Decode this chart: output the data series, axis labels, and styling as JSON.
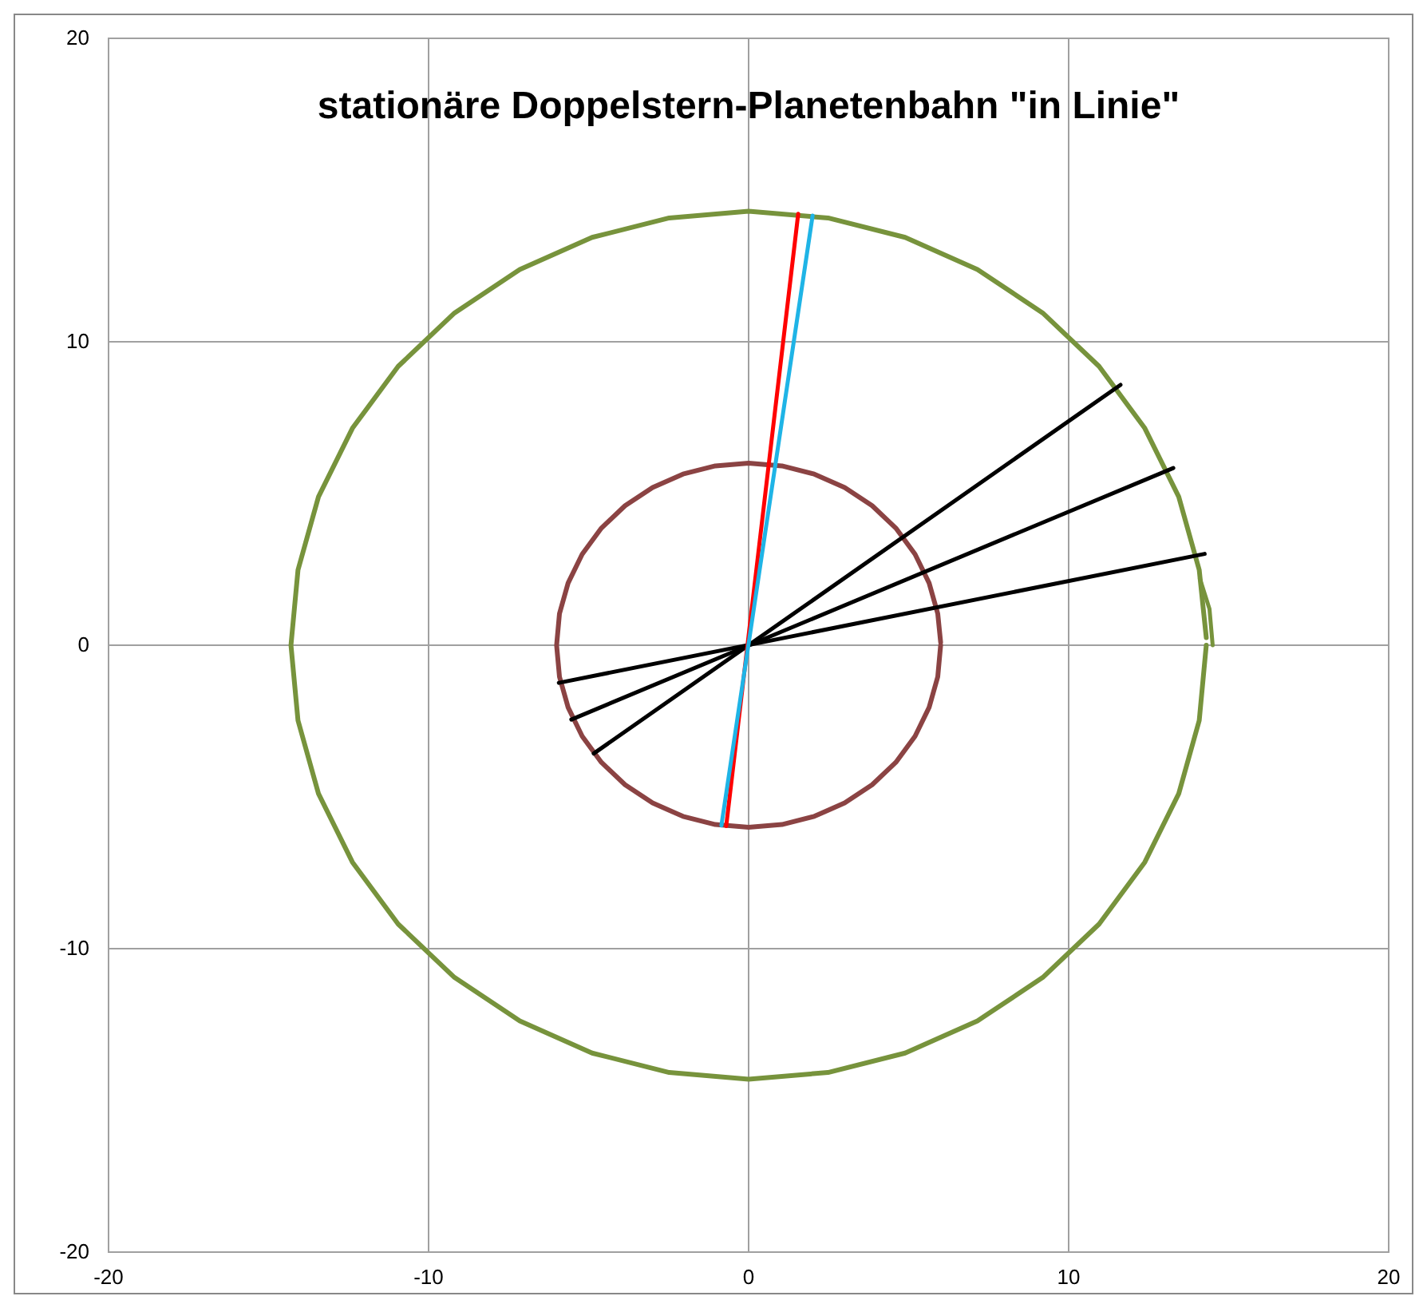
{
  "chart_data": {
    "type": "line",
    "title": "stationäre Doppelstern-Planetenbahn \"in Linie\"",
    "xlim": [
      -20,
      20
    ],
    "xticks": [
      -20,
      -10,
      0,
      10,
      20
    ],
    "ylim": [
      -20,
      20
    ],
    "yticks": [
      -20,
      -10,
      0,
      10,
      20
    ],
    "grid": true,
    "series": [
      {
        "color": "#77933c",
        "x": [
          14.3,
          14.08,
          13.44,
          12.38,
          10.95,
          9.19,
          7.15,
          4.89,
          2.48,
          0,
          -2.48,
          -4.89,
          -7.15,
          -9.19,
          -10.95,
          -12.38,
          -13.44,
          -14.08,
          -14.3,
          -14.08,
          -13.44,
          -12.38,
          -10.95,
          -9.19,
          -7.15,
          -4.89,
          -2.48,
          0,
          2.48,
          4.89,
          7.15,
          9.19,
          10.95,
          12.38,
          13.44,
          14.08,
          14.3
        ],
        "values": [
          0.25,
          2.48,
          4.89,
          7.15,
          9.19,
          10.95,
          12.38,
          13.44,
          14.08,
          14.3,
          14.08,
          13.44,
          12.38,
          10.95,
          9.19,
          7.15,
          4.89,
          2.48,
          0,
          -2.48,
          -4.89,
          -7.15,
          -9.19,
          -10.95,
          -12.38,
          -13.44,
          -14.08,
          -14.3,
          -14.08,
          -13.44,
          -12.38,
          -10.95,
          -9.19,
          -7.15,
          -4.89,
          -2.48,
          0
        ]
      },
      {
        "color": "#77933c",
        "x": [
          14.5,
          14.4,
          14.1
        ],
        "values": [
          0,
          1.2,
          2.2
        ]
      },
      {
        "color": "#8b4343",
        "x": [
          6,
          5.91,
          5.64,
          5.2,
          4.6,
          3.86,
          3,
          2.05,
          1.04,
          0,
          -1.04,
          -2.05,
          -3,
          -3.86,
          -4.6,
          -5.2,
          -5.64,
          -5.91,
          -6,
          -5.91,
          -5.64,
          -5.2,
          -4.6,
          -3.86,
          -3,
          -2.05,
          -1.04,
          0,
          1.04,
          2.05,
          3,
          3.86,
          4.6,
          5.2,
          5.64,
          5.91,
          6
        ],
        "values": [
          0.1,
          1.04,
          2.05,
          3,
          3.86,
          4.6,
          5.2,
          5.64,
          5.91,
          6,
          5.91,
          5.64,
          5.2,
          4.6,
          3.86,
          3,
          2.05,
          1.04,
          0,
          -1.04,
          -2.05,
          -3,
          -3.86,
          -4.6,
          -5.2,
          -5.64,
          -5.91,
          -6,
          -5.91,
          -5.64,
          -5.2,
          -4.6,
          -3.86,
          -3,
          -2.05,
          -1.04,
          0
        ]
      },
      {
        "color": "#000000",
        "x": [
          -4.84,
          11.62
        ],
        "values": [
          -3.57,
          8.58
        ]
      },
      {
        "color": "#000000",
        "x": [
          -5.54,
          13.27
        ],
        "values": [
          -2.45,
          5.84
        ]
      },
      {
        "color": "#000000",
        "x": [
          -5.93,
          14.25
        ],
        "values": [
          -1.24,
          3.01
        ]
      },
      {
        "color": "#ff0000",
        "x": [
          -0.7,
          1.55
        ],
        "values": [
          -5.96,
          14.22
        ]
      },
      {
        "color": "#1fb4e6",
        "x": [
          -0.85,
          2.0
        ],
        "values": [
          -5.94,
          14.16
        ]
      }
    ]
  }
}
